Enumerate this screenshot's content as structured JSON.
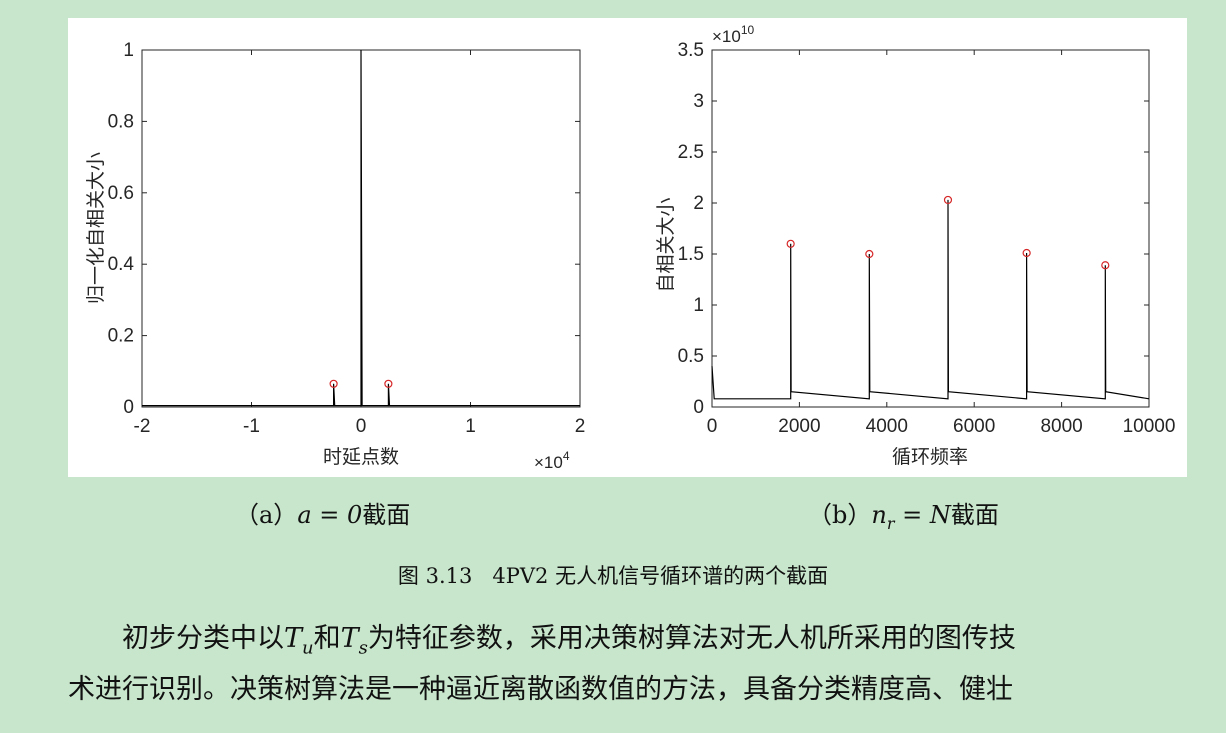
{
  "figure": {
    "subcaption_a": {
      "prefix": "（a）",
      "math": "a = 0",
      "suffix": "截面"
    },
    "subcaption_b": {
      "prefix": "（b）",
      "math_n": "n",
      "math_sub": "r",
      "math_rest": " = N",
      "suffix": "截面"
    },
    "caption": "图 3.13   4PV2 无人机信号循环谱的两个截面"
  },
  "paragraph": {
    "line1_a": "初步分类中以",
    "T1": "T",
    "T1_sub": "u",
    "line1_b": "和",
    "T2": "T",
    "T2_sub": "s",
    "line1_c": "为特征参数，采用决策树算法对无人机所采用的图传技",
    "line2": "术进行识别。决策树算法是一种逼近离散函数值的方法，具备分类精度高、健壮"
  },
  "chart_data": [
    {
      "type": "line",
      "xlabel": "时延点数",
      "ylabel": "归一化自相关大小",
      "x_multiplier": "×10",
      "x_multiplier_exp": "4",
      "xlim": [
        -2,
        2
      ],
      "ylim": [
        0,
        1
      ],
      "xticks": [
        "-2",
        "-1",
        "0",
        "1",
        "2"
      ],
      "yticks": [
        "0",
        "0.2",
        "0.4",
        "0.6",
        "0.8",
        "1"
      ],
      "series": [
        {
          "values": [
            [
              -2,
              0.004
            ],
            [
              -0.25,
              0.004
            ],
            [
              -0.25,
              0.065
            ],
            [
              -0.24,
              0.004
            ],
            [
              0,
              0.004
            ],
            [
              0,
              1
            ],
            [
              0.01,
              0.004
            ],
            [
              0.25,
              0.004
            ],
            [
              0.25,
              0.065
            ],
            [
              0.26,
              0.004
            ],
            [
              2,
              0.004
            ]
          ]
        }
      ],
      "markers": [
        {
          "x": -0.25,
          "y": 0.065
        },
        {
          "x": 0.25,
          "y": 0.065
        }
      ],
      "marker_color": "#d62728",
      "line_color": "#000000"
    },
    {
      "type": "line",
      "xlabel": "循环频率",
      "ylabel": "自相关大小",
      "y_multiplier": "×10",
      "y_multiplier_exp": "10",
      "xlim": [
        0,
        10000
      ],
      "ylim": [
        0,
        3.5
      ],
      "xticks": [
        "0",
        "2000",
        "4000",
        "6000",
        "8000",
        "10000"
      ],
      "yticks": [
        "0",
        "0.5",
        "1",
        "1.5",
        "2",
        "2.5",
        "3",
        "3.5"
      ],
      "series": [
        {
          "values": [
            [
              0,
              0.4
            ],
            [
              50,
              0.08
            ],
            [
              1800,
              0.08
            ],
            [
              1800,
              1.6
            ],
            [
              1810,
              0.15
            ],
            [
              3600,
              0.08
            ],
            [
              3600,
              1.5
            ],
            [
              3610,
              0.15
            ],
            [
              5400,
              0.08
            ],
            [
              5400,
              2.03
            ],
            [
              5410,
              0.15
            ],
            [
              7200,
              0.08
            ],
            [
              7200,
              1.51
            ],
            [
              7210,
              0.15
            ],
            [
              9000,
              0.08
            ],
            [
              9000,
              1.39
            ],
            [
              9010,
              0.15
            ],
            [
              10000,
              0.08
            ]
          ]
        }
      ],
      "markers": [
        {
          "x": 1800,
          "y": 1.6
        },
        {
          "x": 3600,
          "y": 1.5
        },
        {
          "x": 5400,
          "y": 2.03
        },
        {
          "x": 7200,
          "y": 1.51
        },
        {
          "x": 9000,
          "y": 1.39
        }
      ],
      "marker_color": "#d62728",
      "line_color": "#000000"
    }
  ]
}
